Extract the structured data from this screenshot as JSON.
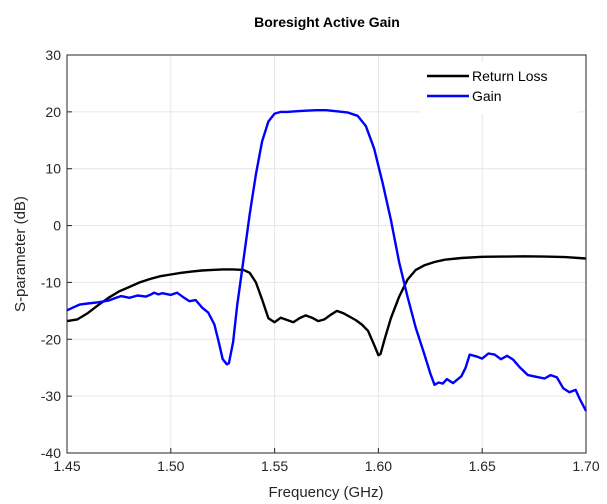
{
  "chart_data": {
    "type": "line",
    "title": "Boresight Active Gain",
    "xlabel": "Frequency (GHz)",
    "ylabel": "S-parameter (dB)",
    "xlim": [
      1.45,
      1.7
    ],
    "ylim": [
      -40,
      30
    ],
    "xticks": [
      "1.45",
      "1.50",
      "1.55",
      "1.60",
      "1.65",
      "1.70"
    ],
    "yticks": [
      "30",
      "20",
      "10",
      "0",
      "-10",
      "-20",
      "-30",
      "-40"
    ],
    "xtick_values": [
      1.45,
      1.5,
      1.55,
      1.6,
      1.65,
      1.7
    ],
    "ytick_values": [
      30,
      20,
      10,
      0,
      -10,
      -20,
      -30,
      -40
    ],
    "grid": true,
    "legend_position": "top-right",
    "series": [
      {
        "name": "Return Loss",
        "color": "#000000",
        "x": [
          1.45,
          1.455,
          1.46,
          1.465,
          1.47,
          1.475,
          1.48,
          1.485,
          1.49,
          1.495,
          1.5,
          1.505,
          1.51,
          1.515,
          1.52,
          1.525,
          1.53,
          1.535,
          1.538,
          1.541,
          1.544,
          1.547,
          1.55,
          1.553,
          1.556,
          1.559,
          1.562,
          1.565,
          1.568,
          1.571,
          1.574,
          1.577,
          1.58,
          1.583,
          1.586,
          1.589,
          1.592,
          1.595,
          1.598,
          1.6,
          1.601,
          1.603,
          1.606,
          1.61,
          1.614,
          1.618,
          1.622,
          1.627,
          1.632,
          1.64,
          1.65,
          1.66,
          1.67,
          1.68,
          1.69,
          1.7
        ],
        "y": [
          -16.8,
          -16.5,
          -15.4,
          -14.0,
          -12.7,
          -11.6,
          -10.8,
          -10.0,
          -9.4,
          -8.9,
          -8.6,
          -8.3,
          -8.1,
          -7.9,
          -7.8,
          -7.7,
          -7.7,
          -7.8,
          -8.3,
          -10.0,
          -13.0,
          -16.3,
          -17.0,
          -16.2,
          -16.6,
          -17.0,
          -16.3,
          -15.8,
          -16.2,
          -16.8,
          -16.5,
          -15.7,
          -15.0,
          -15.4,
          -16.0,
          -16.6,
          -17.4,
          -18.5,
          -21.0,
          -22.8,
          -22.6,
          -20.0,
          -16.3,
          -12.5,
          -9.5,
          -7.8,
          -7.0,
          -6.4,
          -6.0,
          -5.7,
          -5.5,
          -5.45,
          -5.4,
          -5.45,
          -5.55,
          -5.8
        ]
      },
      {
        "name": "Gain",
        "color": "#0000ff",
        "x": [
          1.45,
          1.453,
          1.456,
          1.46,
          1.465,
          1.47,
          1.473,
          1.476,
          1.48,
          1.484,
          1.488,
          1.49,
          1.492,
          1.494,
          1.496,
          1.5,
          1.503,
          1.506,
          1.509,
          1.512,
          1.515,
          1.518,
          1.521,
          1.523,
          1.525,
          1.527,
          1.528,
          1.53,
          1.532,
          1.535,
          1.538,
          1.541,
          1.544,
          1.547,
          1.55,
          1.553,
          1.556,
          1.56,
          1.565,
          1.57,
          1.575,
          1.58,
          1.585,
          1.59,
          1.594,
          1.598,
          1.602,
          1.606,
          1.61,
          1.614,
          1.618,
          1.622,
          1.625,
          1.627,
          1.629,
          1.631,
          1.633,
          1.636,
          1.64,
          1.642,
          1.644,
          1.647,
          1.65,
          1.653,
          1.656,
          1.659,
          1.662,
          1.665,
          1.668,
          1.672,
          1.676,
          1.68,
          1.683,
          1.686,
          1.689,
          1.692,
          1.695,
          1.697,
          1.7
        ],
        "y": [
          -14.9,
          -14.4,
          -13.9,
          -13.7,
          -13.5,
          -13.2,
          -12.8,
          -12.4,
          -12.7,
          -12.3,
          -12.5,
          -12.2,
          -11.8,
          -12.1,
          -11.9,
          -12.2,
          -11.8,
          -12.6,
          -13.3,
          -13.1,
          -14.4,
          -15.3,
          -17.4,
          -20.3,
          -23.5,
          -24.4,
          -24.2,
          -20.5,
          -14.0,
          -6.0,
          2.0,
          9.0,
          14.8,
          18.3,
          19.7,
          20.0,
          20.0,
          20.1,
          20.2,
          20.3,
          20.3,
          20.1,
          19.9,
          19.3,
          17.5,
          13.5,
          7.5,
          1.0,
          -6.5,
          -12.5,
          -18.0,
          -22.5,
          -26.0,
          -28.0,
          -27.6,
          -27.8,
          -27.0,
          -27.7,
          -26.5,
          -25.0,
          -22.7,
          -23.0,
          -23.4,
          -22.5,
          -22.7,
          -23.5,
          -22.9,
          -23.6,
          -24.9,
          -26.3,
          -26.6,
          -26.9,
          -26.3,
          -26.7,
          -28.6,
          -29.3,
          -28.9,
          -30.5,
          -32.6
        ]
      }
    ]
  }
}
